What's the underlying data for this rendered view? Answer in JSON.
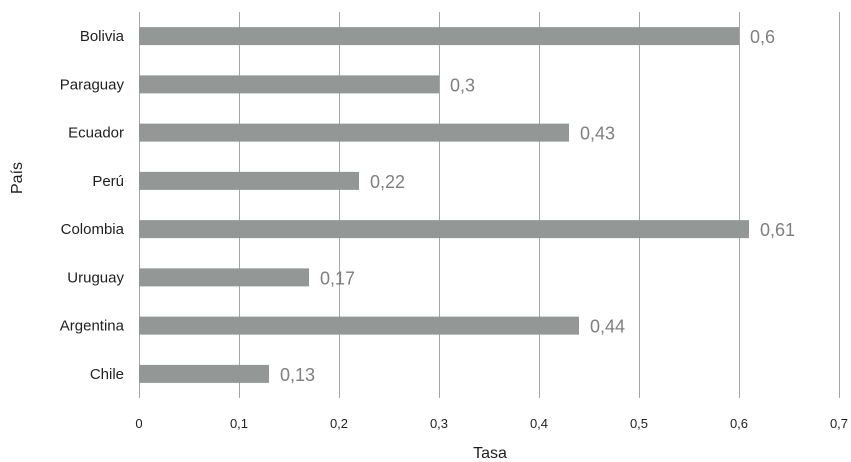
{
  "chart_data": {
    "type": "bar",
    "orientation": "horizontal",
    "categories": [
      "Bolivia",
      "Paraguay",
      "Ecuador",
      "Perú",
      "Colombia",
      "Uruguay",
      "Argentina",
      "Chile"
    ],
    "values": [
      0.6,
      0.3,
      0.43,
      0.22,
      0.61,
      0.17,
      0.44,
      0.13
    ],
    "data_labels": [
      "0,6",
      "0,3",
      "0,43",
      "0,22",
      "0,61",
      "0,17",
      "0,44",
      "0,13"
    ],
    "xlim": [
      0,
      0.7
    ],
    "x_ticks": [
      0,
      0.1,
      0.2,
      0.3,
      0.4,
      0.5,
      0.6,
      0.7
    ],
    "x_tick_labels": [
      "0",
      "0,1",
      "0,2",
      "0,3",
      "0,4",
      "0,5",
      "0,6",
      "0,7"
    ],
    "xlabel": "Tasa",
    "ylabel": "País",
    "title": "",
    "grid": "vertical",
    "legend": "none",
    "colors": {
      "bar": "#939796",
      "grid": "#a6a6a6",
      "data_label": "#7f7f7f",
      "text": "#1f1f1f"
    }
  }
}
